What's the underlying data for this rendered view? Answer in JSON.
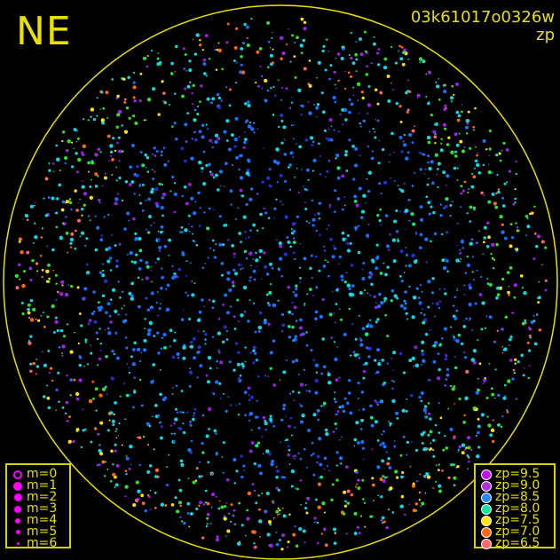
{
  "direction_label": "NE",
  "title": {
    "image_id": "03k61017o0326w",
    "mode": "zp"
  },
  "colors": {
    "horizon_circle": "#e8e000",
    "text": "#e8e000",
    "magnitude_symbol": "#ff00ff"
  },
  "magnitude_legend": [
    {
      "label": "m=0",
      "style": "ring"
    },
    {
      "label": "m=1",
      "style": "dot"
    },
    {
      "label": "m=2",
      "style": "dot"
    },
    {
      "label": "m=3",
      "style": "dot"
    },
    {
      "label": "m=4",
      "style": "dot"
    },
    {
      "label": "m=5",
      "style": "dot"
    },
    {
      "label": "m=6",
      "style": "dot"
    }
  ],
  "zp_legend": [
    {
      "label": "zp=9.5",
      "color": "#c010f0"
    },
    {
      "label": "zp=9.0",
      "color": "#b030e0"
    },
    {
      "label": "zp=8.5",
      "color": "#2a88ff"
    },
    {
      "label": "zp=8.0",
      "color": "#10e8a0"
    },
    {
      "label": "zp=7.5",
      "color": "#ffe010"
    },
    {
      "label": "zp=7.0",
      "color": "#ff6a10"
    },
    {
      "label": "zp=6.5",
      "color": "#ff6868"
    }
  ]
}
